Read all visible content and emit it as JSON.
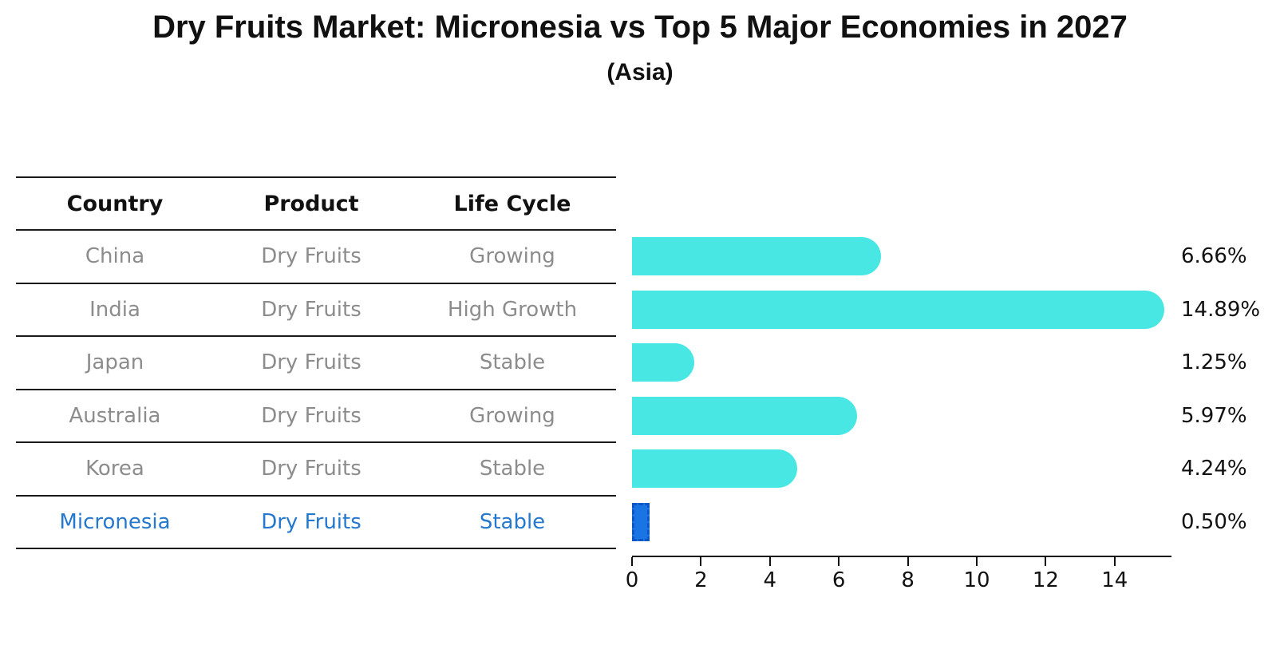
{
  "header": {
    "title": "Dry Fruits Market: Micronesia vs Top 5 Major Economies in 2027",
    "subtitle": "(Asia)"
  },
  "table": {
    "columns": [
      "Country",
      "Product",
      "Life Cycle"
    ],
    "rows": [
      {
        "country": "China",
        "product": "Dry Fruits",
        "life_cycle": "Growing",
        "highlight": false
      },
      {
        "country": "India",
        "product": "Dry Fruits",
        "life_cycle": "High Growth",
        "highlight": false
      },
      {
        "country": "Japan",
        "product": "Dry Fruits",
        "life_cycle": "Stable",
        "highlight": false
      },
      {
        "country": "Australia",
        "product": "Dry Fruits",
        "life_cycle": "Growing",
        "highlight": false
      },
      {
        "country": "Korea",
        "product": "Dry Fruits",
        "life_cycle": "Stable",
        "highlight": false
      },
      {
        "country": "Micronesia",
        "product": "Dry Fruits",
        "life_cycle": "Stable",
        "highlight": true
      }
    ]
  },
  "chart_data": {
    "type": "bar",
    "orientation": "horizontal",
    "title": "Dry Fruits Market: Micronesia vs Top 5 Major Economies in 2027",
    "subtitle": "(Asia)",
    "categories": [
      "China",
      "India",
      "Japan",
      "Australia",
      "Korea",
      "Micronesia"
    ],
    "values": [
      6.66,
      14.89,
      1.25,
      5.97,
      4.24,
      0.5
    ],
    "value_labels": [
      "6.66%",
      "14.89%",
      "1.25%",
      "5.97%",
      "4.24%",
      "0.50%"
    ],
    "xlabel": "",
    "ylabel": "",
    "xlim": [
      0,
      15.6
    ],
    "x_ticks": [
      0,
      2,
      4,
      6,
      8,
      10,
      12,
      14
    ],
    "grid": false,
    "legend": false,
    "highlight_category": "Micronesia",
    "highlight_style": "dashed-rectangle",
    "colors": {
      "bar_default": "#48E7E4",
      "bar_highlight": "#1B74E4",
      "bar_highlight_edge": "#0D57C4",
      "highlight_text": "#2478CE",
      "row_text": "#8C8C8C",
      "header_text": "#111111",
      "axis": "#111111"
    }
  }
}
